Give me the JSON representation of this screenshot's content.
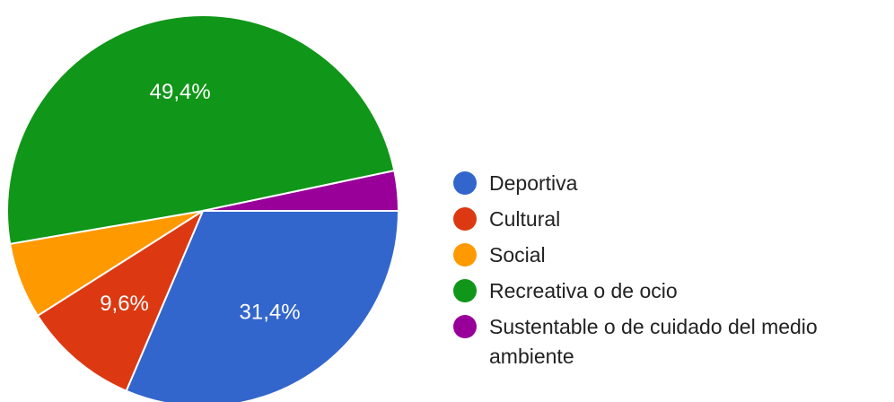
{
  "chart_data": {
    "type": "pie",
    "title": "",
    "categories": [
      "Deportiva",
      "Cultural",
      "Social",
      "Recreativa o de ocio",
      "Sustentable o de cuidado del medio ambiente"
    ],
    "values": [
      31.4,
      9.6,
      6.3,
      49.4,
      3.3
    ],
    "slice_labels": [
      "31,4%",
      "9,6%",
      "",
      "49,4%",
      ""
    ],
    "colors": [
      "#3366cc",
      "#dc3912",
      "#ff9900",
      "#109618",
      "#990099"
    ],
    "legend_position": "right"
  }
}
